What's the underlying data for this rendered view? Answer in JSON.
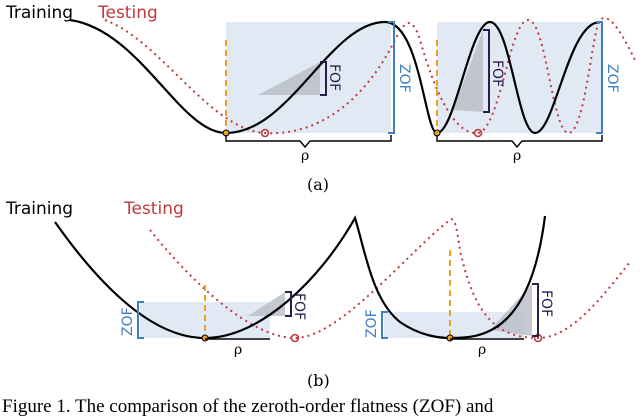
{
  "panel_a": {
    "training_label": "Training",
    "testing_label": "Testing",
    "fof_label_1": "FOF",
    "zof_label_1": "ZOF",
    "fof_label_2": "FOF",
    "zof_label_2": "ZOF",
    "rho_label_1": "ρ",
    "rho_label_2": "ρ",
    "sublabel": "(a)"
  },
  "panel_b": {
    "training_label": "Training",
    "testing_label": "Testing",
    "zof_label_1": "ZOF",
    "fof_label_1": "FOF",
    "zof_label_2": "ZOF",
    "fof_label_2": "FOF",
    "rho_label_1": "ρ",
    "rho_label_2": "ρ",
    "sublabel": "(b)"
  },
  "caption": "Figure 1. The comparison of the zeroth-order flatness (ZOF) and",
  "colors": {
    "training": "#000000",
    "testing": "#c0393b",
    "zof": "#3f7fbf",
    "fof": "#2b1d4a",
    "region": "#dce6f2",
    "minimum_marker": "#f0a020"
  }
}
